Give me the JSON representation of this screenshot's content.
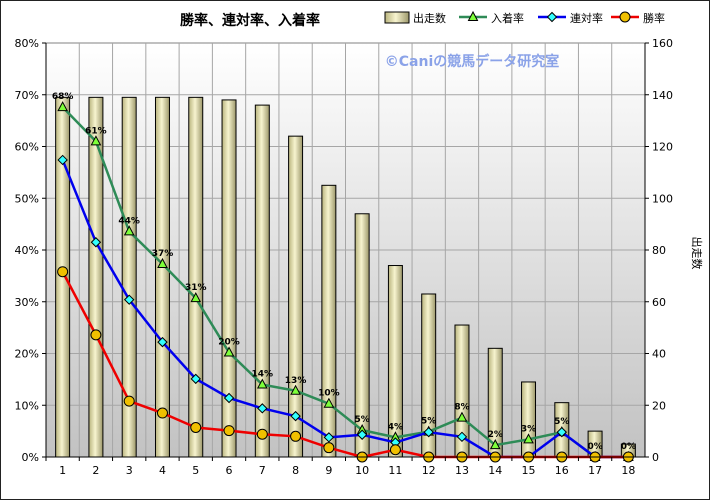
{
  "chart_data": {
    "type": "bar+line",
    "title": "勝率、連対率、入着率",
    "watermark": "©Caniの競馬データ研究室",
    "categories": [
      "1",
      "2",
      "3",
      "4",
      "5",
      "6",
      "7",
      "8",
      "9",
      "10",
      "11",
      "12",
      "13",
      "14",
      "15",
      "16",
      "17",
      "18"
    ],
    "left_axis": {
      "ylim": [
        0,
        80
      ],
      "step": 10,
      "ticks": [
        "0%",
        "10%",
        "20%",
        "30%",
        "40%",
        "50%",
        "60%",
        "70%",
        "80%"
      ]
    },
    "right_axis": {
      "label": "出走数",
      "ylim": [
        0,
        160
      ],
      "step": 20,
      "ticks": [
        "0",
        "20",
        "40",
        "60",
        "80",
        "100",
        "120",
        "140",
        "160"
      ]
    },
    "bar_series": {
      "name": "出走数",
      "axis": "right",
      "color": "#f0ecb8",
      "values": [
        139,
        139,
        139,
        139,
        139,
        138,
        136,
        124,
        105,
        94,
        74,
        63,
        51,
        42,
        29,
        21,
        10,
        5
      ]
    },
    "series": [
      {
        "name": "入着率",
        "axis": "left",
        "color": "#2e8b57",
        "marker_fill": "#7dff3a",
        "marker": "triangle",
        "values": [
          67.6,
          61,
          43.6,
          37.3,
          30.7,
          20.2,
          14,
          12.8,
          10.3,
          5.2,
          3.8,
          4.9,
          7.6,
          2.3,
          3.4,
          4.8,
          0,
          0
        ],
        "labels": [
          "68%",
          "61%",
          "44%",
          "37%",
          "31%",
          "20%",
          "14%",
          "13%",
          "10%",
          "5%",
          "4%",
          "5%",
          "8%",
          "2%",
          "3%",
          "5%",
          "0%",
          "0%"
        ]
      },
      {
        "name": "連対率",
        "axis": "left",
        "color": "#0000ee",
        "marker_fill": "#33ffff",
        "marker": "diamond",
        "values": [
          57.4,
          41.5,
          30.4,
          22.2,
          15.1,
          11.4,
          9.4,
          7.9,
          3.8,
          4.3,
          2.8,
          4.8,
          3.9,
          0,
          0,
          4.8,
          0,
          0
        ]
      },
      {
        "name": "勝率",
        "axis": "left",
        "color": "#ee0000",
        "marker_fill": "#f0c000",
        "marker": "circle",
        "values": [
          35.8,
          23.6,
          10.8,
          8.5,
          5.7,
          5.1,
          4.4,
          4,
          1.8,
          0,
          1.4,
          0,
          0,
          0,
          0,
          0,
          0,
          0
        ]
      }
    ],
    "legend": {
      "placement": "top-right",
      "entries": [
        "出走数",
        "入着率",
        "連対率",
        "勝率"
      ]
    },
    "grid": true
  }
}
